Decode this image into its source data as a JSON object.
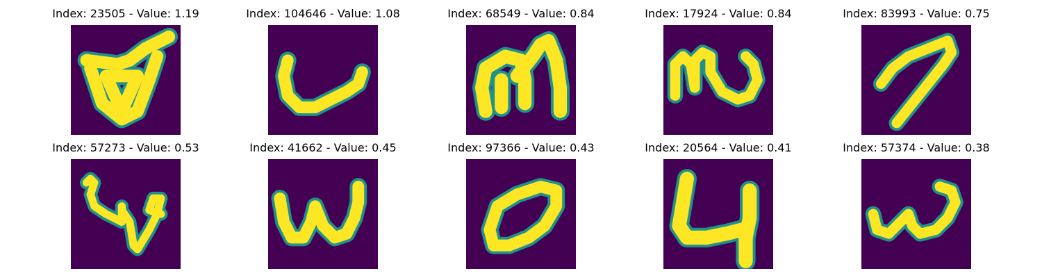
{
  "figure": {
    "colors": {
      "background": "#440154",
      "stroke": "#fde725",
      "edge": "#21918c"
    },
    "panels": [
      {
        "index": "23505",
        "value": "1.19",
        "title": "Index: 23505 - Value: 1.19",
        "depicts": "handwritten glyph resembling an inverted triangle with a long right stroke"
      },
      {
        "index": "104646",
        "value": "1.08",
        "title": "Index: 104646 - Value: 1.08",
        "depicts": "handwritten glyph resembling a lowercase u/L hook"
      },
      {
        "index": "68549",
        "value": "0.84",
        "title": "Index: 68549 - Value: 0.84",
        "depicts": "handwritten glyph resembling the letter m"
      },
      {
        "index": "17924",
        "value": "0.84",
        "title": "Index: 17924 - Value: 0.84",
        "depicts": "handwritten glyph resembling a looped n/U shape"
      },
      {
        "index": "83993",
        "value": "0.75",
        "title": "Index: 83993 - Value: 0.75",
        "depicts": "handwritten glyph resembling the digit 7"
      },
      {
        "index": "57273",
        "value": "0.53",
        "title": "Index: 57273 - Value: 0.53",
        "depicts": "handwritten glyph with a left curl, central v and right loop"
      },
      {
        "index": "41662",
        "value": "0.45",
        "title": "Index: 41662 - Value: 0.45",
        "depicts": "handwritten glyph resembling the letter w"
      },
      {
        "index": "97366",
        "value": "0.43",
        "title": "Index: 97366 - Value: 0.43",
        "depicts": "handwritten glyph resembling a slanted oval o"
      },
      {
        "index": "20564",
        "value": "0.41",
        "title": "Index: 20564 - Value: 0.41",
        "depicts": "handwritten glyph resembling a thick u with a long right descender"
      },
      {
        "index": "57374",
        "value": "0.38",
        "title": "Index: 57374 - Value: 0.38",
        "depicts": "handwritten glyph resembling a small w"
      }
    ]
  }
}
